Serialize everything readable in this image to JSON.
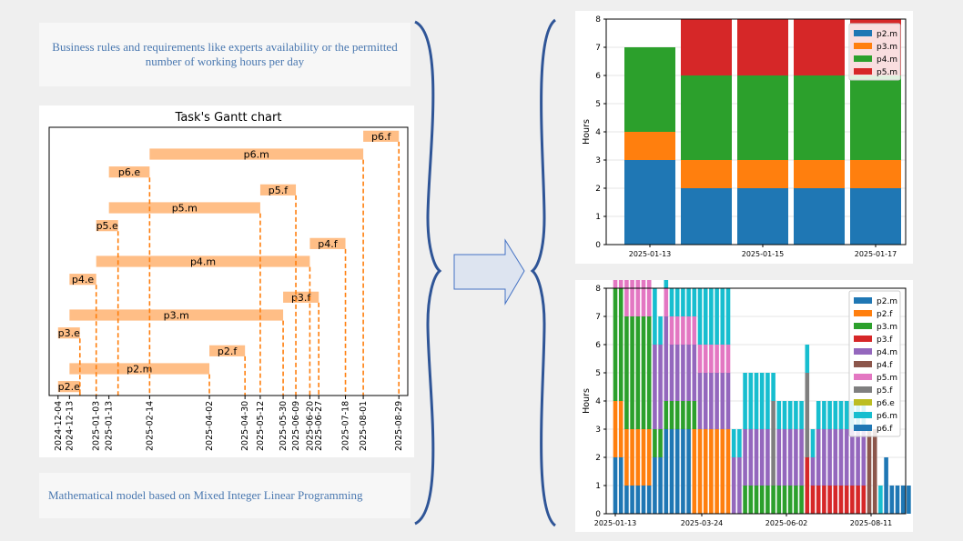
{
  "notes": {
    "top": "Business rules and requirements like experts availability or the permitted number of working hours per day",
    "bottom": "Mathematical model based on Mixed Integer Linear Programming"
  },
  "gantt": {
    "title": "Task's Gantt chart",
    "bar_color": "#ffbe86",
    "dash_color": "#ff7f0e",
    "tasks": [
      {
        "label": "p2.e",
        "start": "2024-12-04",
        "end": "2024-12-04"
      },
      {
        "label": "p2.m",
        "start": "2024-12-13",
        "end": "2025-04-02"
      },
      {
        "label": "p2.f",
        "start": "2025-04-02",
        "end": "2025-04-30"
      },
      {
        "label": "p3.e",
        "start": "2024-12-04",
        "end": "2024-12-13"
      },
      {
        "label": "p3.m",
        "start": "2024-12-13",
        "end": "2025-05-30"
      },
      {
        "label": "p3.f",
        "start": "2025-05-30",
        "end": "2025-06-27"
      },
      {
        "label": "p4.e",
        "start": "2024-12-13",
        "end": "2025-01-03"
      },
      {
        "label": "p4.m",
        "start": "2025-01-03",
        "end": "2025-06-20"
      },
      {
        "label": "p4.f",
        "start": "2025-06-20",
        "end": "2025-07-18"
      },
      {
        "label": "p5.e",
        "start": "2025-01-03",
        "end": "2025-01-13"
      },
      {
        "label": "p5.m",
        "start": "2025-01-13",
        "end": "2025-05-12"
      },
      {
        "label": "p5.f",
        "start": "2025-05-12",
        "end": "2025-06-09"
      },
      {
        "label": "p6.e",
        "start": "2025-01-13",
        "end": "2025-02-14"
      },
      {
        "label": "p6.m",
        "start": "2025-02-14",
        "end": "2025-08-01"
      },
      {
        "label": "p6.f",
        "start": "2025-08-01",
        "end": "2025-08-29"
      }
    ],
    "date_ticks": [
      "2024-12-04",
      "2024-12-13",
      "2025-01-03",
      "2025-01-13",
      "2025-02-14",
      "2025-04-02",
      "2025-04-30",
      "2025-05-12",
      "2025-05-30",
      "2025-06-09",
      "2025-06-20",
      "2025-06-27",
      "2025-07-18",
      "2025-08-01",
      "2025-08-29"
    ]
  },
  "chart_data": [
    {
      "type": "bar",
      "stacked": true,
      "ylabel": "Hours",
      "ylim": [
        0,
        8
      ],
      "yticks": [
        0,
        1,
        2,
        3,
        4,
        5,
        6,
        7,
        8
      ],
      "grid": true,
      "legend": "top-right",
      "categories": [
        "2025-01-13",
        "2025-01-14",
        "2025-01-15",
        "2025-01-16",
        "2025-01-17"
      ],
      "xtick_labels": [
        "2025-01-13",
        "",
        "2025-01-15",
        "",
        "2025-01-17"
      ],
      "series": [
        {
          "name": "p2.m",
          "color": "#1f77b4",
          "values": [
            3,
            2,
            2,
            2,
            2
          ]
        },
        {
          "name": "p3.m",
          "color": "#ff7f0e",
          "values": [
            1,
            1,
            1,
            1,
            1
          ]
        },
        {
          "name": "p4.m",
          "color": "#2ca02c",
          "values": [
            3,
            3,
            3,
            3,
            3
          ]
        },
        {
          "name": "p5.m",
          "color": "#d62728",
          "values": [
            0,
            2,
            2,
            2,
            2
          ]
        }
      ]
    },
    {
      "type": "bar",
      "stacked": true,
      "ylabel": "Hours",
      "ylim": [
        0,
        8
      ],
      "yticks": [
        0,
        1,
        2,
        3,
        4,
        5,
        6,
        7,
        8
      ],
      "grid": true,
      "legend": "top-right",
      "xtick_labels": [
        "2025-01-13",
        "2025-03-24",
        "2025-06-02",
        "2025-08-11"
      ],
      "series": [
        {
          "name": "p2.m",
          "color": "#1f77b4"
        },
        {
          "name": "p2.f",
          "color": "#ff7f0e"
        },
        {
          "name": "p3.m",
          "color": "#2ca02c"
        },
        {
          "name": "p3.f",
          "color": "#d62728"
        },
        {
          "name": "p4.m",
          "color": "#9467bd"
        },
        {
          "name": "p4.f",
          "color": "#8c564b"
        },
        {
          "name": "p5.m",
          "color": "#e377c2"
        },
        {
          "name": "p5.f",
          "color": "#7f7f7f"
        },
        {
          "name": "p6.e",
          "color": "#bcbd22"
        },
        {
          "name": "p6.m",
          "color": "#17becf"
        },
        {
          "name": "p6.f",
          "color": "#1f77b4"
        }
      ],
      "bars": [
        [
          [
            2,
            0
          ],
          [
            2,
            1
          ],
          [
            4,
            2
          ],
          [
            2,
            6
          ]
        ],
        [
          [
            2,
            0
          ],
          [
            2,
            1
          ],
          [
            4,
            2
          ],
          [
            2,
            6
          ]
        ],
        [
          [
            1,
            0
          ],
          [
            2,
            1
          ],
          [
            4,
            2
          ],
          [
            2,
            6
          ],
          [
            1,
            8
          ]
        ],
        [
          [
            1,
            0
          ],
          [
            2,
            1
          ],
          [
            4,
            2
          ],
          [
            2,
            6
          ],
          [
            1,
            8
          ]
        ],
        [
          [
            1,
            0
          ],
          [
            2,
            1
          ],
          [
            4,
            2
          ],
          [
            2,
            6
          ],
          [
            1,
            8
          ]
        ],
        [
          [
            1,
            0
          ],
          [
            2,
            1
          ],
          [
            4,
            2
          ],
          [
            2,
            6
          ],
          [
            1,
            8
          ]
        ],
        [
          [
            1,
            0
          ],
          [
            2,
            1
          ],
          [
            4,
            2
          ],
          [
            2,
            6
          ],
          [
            1,
            8
          ]
        ],
        [
          [
            2,
            0
          ],
          [
            1,
            2
          ],
          [
            3,
            4
          ],
          [
            2,
            9
          ]
        ],
        [
          [
            2,
            0
          ],
          [
            1,
            2
          ],
          [
            3,
            4
          ],
          [
            1,
            9
          ]
        ],
        [
          [
            3,
            0
          ],
          [
            1,
            2
          ],
          [
            3,
            4
          ],
          [
            1,
            6
          ],
          [
            1,
            9
          ]
        ],
        [
          [
            3,
            0
          ],
          [
            1,
            2
          ],
          [
            2,
            4
          ],
          [
            1,
            6
          ],
          [
            1,
            9
          ]
        ],
        [
          [
            3,
            0
          ],
          [
            1,
            2
          ],
          [
            2,
            4
          ],
          [
            1,
            6
          ],
          [
            1,
            9
          ]
        ],
        [
          [
            3,
            0
          ],
          [
            1,
            2
          ],
          [
            2,
            4
          ],
          [
            1,
            6
          ],
          [
            1,
            9
          ]
        ],
        [
          [
            3,
            0
          ],
          [
            1,
            2
          ],
          [
            2,
            4
          ],
          [
            1,
            6
          ],
          [
            1,
            9
          ]
        ],
        [
          [
            3,
            1
          ],
          [
            1,
            2
          ],
          [
            2,
            4
          ],
          [
            1,
            6
          ],
          [
            1,
            9
          ]
        ],
        [
          [
            3,
            1
          ],
          [
            2,
            4
          ],
          [
            1,
            6
          ],
          [
            2,
            9
          ]
        ],
        [
          [
            3,
            1
          ],
          [
            2,
            4
          ],
          [
            1,
            6
          ],
          [
            2,
            9
          ]
        ],
        [
          [
            3,
            1
          ],
          [
            2,
            4
          ],
          [
            1,
            6
          ],
          [
            2,
            9
          ]
        ],
        [
          [
            3,
            1
          ],
          [
            2,
            4
          ],
          [
            1,
            6
          ],
          [
            2,
            9
          ]
        ],
        [
          [
            3,
            1
          ],
          [
            2,
            4
          ],
          [
            1,
            6
          ],
          [
            2,
            9
          ]
        ],
        [
          [
            3,
            1
          ],
          [
            2,
            4
          ],
          [
            1,
            6
          ],
          [
            2,
            9
          ]
        ],
        [
          [
            2,
            4
          ],
          [
            1,
            9
          ]
        ],
        [
          [
            2,
            4
          ],
          [
            1,
            9
          ]
        ],
        [
          [
            1,
            2
          ],
          [
            2,
            4
          ],
          [
            2,
            9
          ]
        ],
        [
          [
            1,
            2
          ],
          [
            2,
            4
          ],
          [
            2,
            9
          ]
        ],
        [
          [
            1,
            2
          ],
          [
            2,
            4
          ],
          [
            2,
            9
          ]
        ],
        [
          [
            1,
            2
          ],
          [
            2,
            4
          ],
          [
            2,
            9
          ]
        ],
        [
          [
            1,
            2
          ],
          [
            2,
            4
          ],
          [
            2,
            9
          ]
        ],
        [
          [
            1,
            2
          ],
          [
            3,
            7
          ],
          [
            1,
            9
          ]
        ],
        [
          [
            1,
            2
          ],
          [
            2,
            4
          ],
          [
            1,
            9
          ]
        ],
        [
          [
            1,
            2
          ],
          [
            2,
            4
          ],
          [
            1,
            9
          ]
        ],
        [
          [
            1,
            2
          ],
          [
            2,
            4
          ],
          [
            1,
            9
          ]
        ],
        [
          [
            1,
            2
          ],
          [
            2,
            4
          ],
          [
            1,
            9
          ]
        ],
        [
          [
            1,
            2
          ],
          [
            2,
            4
          ],
          [
            1,
            9
          ]
        ],
        [
          [
            2,
            3
          ],
          [
            3,
            7
          ],
          [
            1,
            9
          ]
        ],
        [
          [
            1,
            3
          ],
          [
            1,
            4
          ],
          [
            1,
            9
          ]
        ],
        [
          [
            1,
            3
          ],
          [
            2,
            4
          ],
          [
            1,
            9
          ]
        ],
        [
          [
            1,
            3
          ],
          [
            2,
            4
          ],
          [
            1,
            9
          ]
        ],
        [
          [
            1,
            3
          ],
          [
            2,
            4
          ],
          [
            1,
            9
          ]
        ],
        [
          [
            1,
            3
          ],
          [
            2,
            4
          ],
          [
            1,
            9
          ]
        ],
        [
          [
            1,
            3
          ],
          [
            2,
            4
          ],
          [
            1,
            9
          ]
        ],
        [
          [
            1,
            3
          ],
          [
            2,
            4
          ],
          [
            1,
            9
          ]
        ],
        [
          [
            1,
            3
          ],
          [
            2,
            4
          ],
          [
            1,
            9
          ]
        ],
        [
          [
            1,
            3
          ],
          [
            2,
            4
          ],
          [
            1,
            9
          ]
        ],
        [
          [
            1,
            3
          ],
          [
            2,
            4
          ],
          [
            1,
            9
          ]
        ],
        [
          [
            3,
            5
          ]
        ],
        [
          [
            3,
            5
          ]
        ],
        [
          [
            1,
            9
          ]
        ],
        [
          [
            2,
            0
          ]
        ],
        [
          [
            1,
            0
          ]
        ],
        [
          [
            1,
            0
          ]
        ],
        [
          [
            1,
            0
          ]
        ],
        [
          [
            1,
            0
          ]
        ]
      ]
    }
  ]
}
